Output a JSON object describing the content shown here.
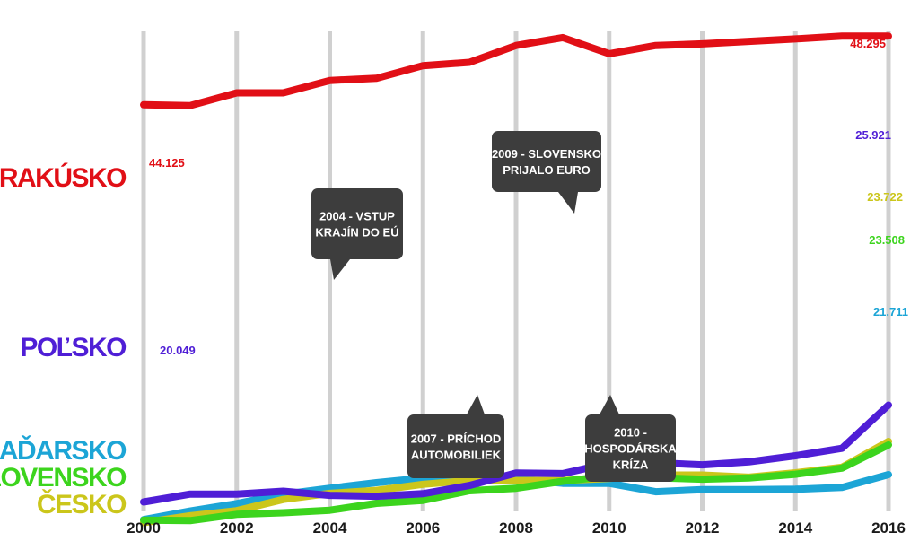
{
  "chart_data": {
    "type": "line",
    "title": "",
    "xlabel": "",
    "ylabel": "",
    "x": [
      2000,
      2001,
      2002,
      2003,
      2004,
      2005,
      2006,
      2007,
      2008,
      2009,
      2010,
      2011,
      2012,
      2013,
      2014,
      2015,
      2016
    ],
    "x_ticks": [
      "2000",
      "2002",
      "2004",
      "2006",
      "2008",
      "2010",
      "2012",
      "2014",
      "2016"
    ],
    "ylim": [
      18.5,
      49.5
    ],
    "grid": "vertical",
    "series": [
      {
        "name": "RAKÚSKO",
        "color": "#e10f16",
        "values": [
          44.125,
          44.08,
          44.85,
          44.85,
          45.6,
          45.73,
          46.5,
          46.7,
          47.72,
          48.2,
          47.22,
          47.72,
          47.82,
          47.97,
          48.12,
          48.295,
          48.295
        ],
        "start_label": "44.125",
        "end_label": "48.295"
      },
      {
        "name": "POĽSKO",
        "color": "#4f1ed6",
        "values": [
          20.049,
          20.53,
          20.53,
          20.7,
          20.45,
          20.4,
          20.55,
          21.05,
          21.8,
          21.77,
          22.4,
          22.42,
          22.3,
          22.48,
          22.85,
          23.3,
          25.921
        ],
        "start_label": "20.049",
        "end_label": "25.921"
      },
      {
        "name": "MAĎARSKO",
        "color": "#1ca5d6",
        "values": [
          18.98,
          19.5,
          19.95,
          20.52,
          20.88,
          21.22,
          21.5,
          21.3,
          21.45,
          21.18,
          21.18,
          20.67,
          20.8,
          20.8,
          20.82,
          20.93,
          21.711
        ],
        "end_label": "21.711"
      },
      {
        "name": "SLOVENSKO",
        "color": "#3cd41d",
        "values": [
          18.95,
          18.92,
          19.3,
          19.4,
          19.55,
          19.97,
          20.15,
          20.73,
          20.88,
          21.3,
          21.62,
          21.52,
          21.43,
          21.5,
          21.73,
          22.1,
          23.508
        ],
        "end_label": "23.508"
      },
      {
        "name": "ČESKO",
        "color": "#cbc61b",
        "values": [
          18.8,
          19.22,
          19.52,
          20.2,
          20.57,
          20.75,
          21.12,
          21.35,
          21.35,
          21.35,
          21.48,
          21.68,
          21.68,
          21.55,
          21.82,
          22.15,
          23.722
        ],
        "end_label": "23.722"
      }
    ],
    "annotations": [
      {
        "text": [
          "2004 - VSTUP",
          "KRAJÍN DO EÚ"
        ]
      },
      {
        "text": [
          "2009 - SLOVENSKO",
          "PRIJALO EURO"
        ]
      },
      {
        "text": [
          "2007 - PRÍCHOD",
          "AUTOMOBILIEK"
        ]
      },
      {
        "text": [
          "2010 -",
          "HOSPODÁRSKA",
          "KRÍZA"
        ]
      }
    ]
  }
}
